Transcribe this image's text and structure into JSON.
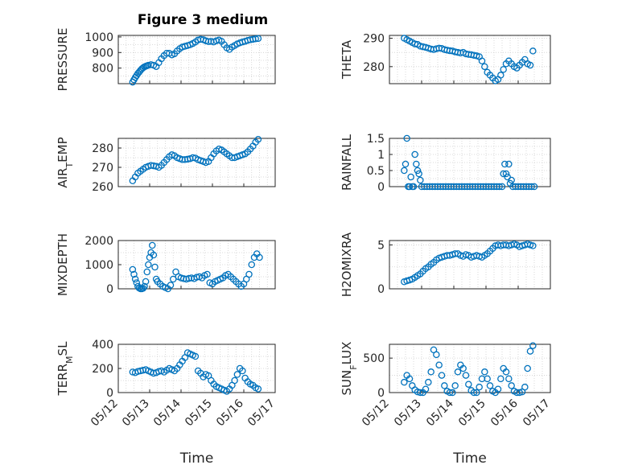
{
  "figure": {
    "title": "Figure 3 medium"
  },
  "chart_data": [
    {
      "id": "pressure",
      "type": "scatter",
      "ylabel": "PRESSURE",
      "ylabel_sub": null,
      "ylim": [
        700,
        1010
      ],
      "yticks": [
        800,
        900,
        1000
      ],
      "ytick_labels": [
        "800",
        "900",
        "1000"
      ],
      "xlim": [
        "05/12",
        "05/17"
      ],
      "xticks": [
        "05/12",
        "05/13",
        "05/14",
        "05/15",
        "05/16",
        "05/17"
      ],
      "grid": true,
      "color": "#0072BD",
      "x": [
        "05/12 11:00",
        "05/12 12:00",
        "05/12 13:00",
        "05/12 14:00",
        "05/12 15:00",
        "05/12 16:00",
        "05/12 17:00",
        "05/12 18:00",
        "05/12 19:00",
        "05/12 20:00",
        "05/12 21:00",
        "05/12 22:00",
        "05/12 23:00",
        "05/13 01:00",
        "05/13 03:00",
        "05/13 05:00",
        "05/13 07:00",
        "05/13 09:00",
        "05/13 11:00",
        "05/13 13:00",
        "05/13 15:00",
        "05/13 17:00",
        "05/13 19:00",
        "05/13 21:00",
        "05/13 23:00",
        "05/14 01:00",
        "05/14 03:00",
        "05/14 05:00",
        "05/14 07:00",
        "05/14 09:00",
        "05/14 11:00",
        "05/14 13:00",
        "05/14 15:00",
        "05/14 17:00",
        "05/14 19:00",
        "05/14 21:00",
        "05/14 23:00",
        "05/15 01:00",
        "05/15 03:00",
        "05/15 05:00",
        "05/15 07:00",
        "05/15 09:00",
        "05/15 11:00",
        "05/15 13:00",
        "05/15 15:00",
        "05/15 17:00",
        "05/15 19:00",
        "05/15 21:00",
        "05/15 23:00",
        "05/16 01:00",
        "05/16 03:00",
        "05/16 05:00",
        "05/16 07:00",
        "05/16 09:00",
        "05/16 11:00"
      ],
      "y": [
        710,
        725,
        740,
        752,
        765,
        775,
        785,
        795,
        802,
        808,
        812,
        815,
        818,
        822,
        818,
        810,
        835,
        860,
        880,
        895,
        895,
        885,
        892,
        910,
        925,
        935,
        940,
        945,
        950,
        958,
        968,
        980,
        985,
        982,
        975,
        970,
        972,
        968,
        975,
        980,
        972,
        950,
        930,
        920,
        935,
        945,
        955,
        962,
        968,
        972,
        978,
        982,
        985,
        988,
        990
      ]
    },
    {
      "id": "theta",
      "type": "scatter",
      "ylabel": "THETA",
      "ylabel_sub": null,
      "ylim": [
        274,
        291
      ],
      "yticks": [
        280,
        290
      ],
      "ytick_labels": [
        "280",
        "290"
      ],
      "xlim": [
        "05/12",
        "05/17"
      ],
      "xticks": [
        "05/12",
        "05/13",
        "05/14",
        "05/15",
        "05/16",
        "05/17"
      ],
      "grid": true,
      "color": "#0072BD",
      "x": [
        "05/12 11:00",
        "05/12 13:00",
        "05/12 15:00",
        "05/12 17:00",
        "05/12 19:00",
        "05/12 21:00",
        "05/12 23:00",
        "05/13 01:00",
        "05/13 03:00",
        "05/13 05:00",
        "05/13 07:00",
        "05/13 09:00",
        "05/13 11:00",
        "05/13 13:00",
        "05/13 15:00",
        "05/13 17:00",
        "05/13 19:00",
        "05/13 21:00",
        "05/13 23:00",
        "05/14 01:00",
        "05/14 03:00",
        "05/14 05:00",
        "05/14 07:00",
        "05/14 09:00",
        "05/14 11:00",
        "05/14 13:00",
        "05/14 15:00",
        "05/14 17:00",
        "05/14 19:00",
        "05/14 21:00",
        "05/14 23:00",
        "05/15 01:00",
        "05/15 03:00",
        "05/15 05:00",
        "05/15 07:00",
        "05/15 09:00",
        "05/15 11:00",
        "05/15 13:00",
        "05/15 15:00",
        "05/15 17:00",
        "05/15 19:00",
        "05/15 21:00",
        "05/15 23:00",
        "05/16 01:00",
        "05/16 03:00",
        "05/16 05:00",
        "05/16 07:00",
        "05/16 09:00",
        "05/16 11:00"
      ],
      "y": [
        290,
        289.5,
        289,
        288.5,
        288,
        287.8,
        287.2,
        287,
        286.8,
        286.5,
        286.2,
        286,
        286.3,
        286.5,
        286.4,
        286,
        285.8,
        285.6,
        285.5,
        285.2,
        285,
        284.8,
        285,
        284.5,
        284.3,
        284.2,
        284,
        283.8,
        283.5,
        282,
        280,
        278,
        277,
        276,
        275,
        275.5,
        277,
        279,
        281,
        282,
        281,
        280,
        279.5,
        280.5,
        281.5,
        282.5,
        281,
        280.5,
        285.5
      ]
    },
    {
      "id": "air_temp",
      "type": "scatter",
      "ylabel": "AIR",
      "ylabel_sub": "T",
      "ylabel_suffix": "EMP",
      "ylim": [
        260,
        285
      ],
      "yticks": [
        260,
        270,
        280
      ],
      "ytick_labels": [
        "260",
        "270",
        "280"
      ],
      "xlim": [
        "05/12",
        "05/17"
      ],
      "xticks": [
        "05/12",
        "05/13",
        "05/14",
        "05/15",
        "05/16",
        "05/17"
      ],
      "grid": true,
      "color": "#0072BD",
      "x": [
        "05/12 11:00",
        "05/12 13:00",
        "05/12 15:00",
        "05/12 17:00",
        "05/12 19:00",
        "05/12 21:00",
        "05/12 23:00",
        "05/13 01:00",
        "05/13 03:00",
        "05/13 05:00",
        "05/13 07:00",
        "05/13 09:00",
        "05/13 11:00",
        "05/13 13:00",
        "05/13 15:00",
        "05/13 17:00",
        "05/13 19:00",
        "05/13 21:00",
        "05/13 23:00",
        "05/14 01:00",
        "05/14 03:00",
        "05/14 05:00",
        "05/14 07:00",
        "05/14 09:00",
        "05/14 11:00",
        "05/14 13:00",
        "05/14 15:00",
        "05/14 17:00",
        "05/14 19:00",
        "05/14 21:00",
        "05/14 23:00",
        "05/15 01:00",
        "05/15 03:00",
        "05/15 05:00",
        "05/15 07:00",
        "05/15 09:00",
        "05/15 11:00",
        "05/15 13:00",
        "05/15 15:00",
        "05/15 17:00",
        "05/15 19:00",
        "05/15 21:00",
        "05/15 23:00",
        "05/16 01:00",
        "05/16 03:00",
        "05/16 05:00",
        "05/16 07:00",
        "05/16 09:00",
        "05/16 11:00"
      ],
      "y": [
        263,
        265,
        267,
        268,
        269,
        270,
        270.5,
        271,
        270.8,
        270.5,
        270,
        271,
        272.5,
        274,
        275.5,
        276.5,
        276,
        275,
        274.5,
        274,
        274,
        274.2,
        274.5,
        275,
        274.8,
        274,
        273.5,
        273,
        272.5,
        273,
        275,
        277,
        278.5,
        279.5,
        279,
        278,
        277,
        276,
        275,
        275,
        275.5,
        276,
        276.5,
        277,
        278,
        279.5,
        281,
        283,
        284.5
      ]
    },
    {
      "id": "rainfall",
      "type": "scatter",
      "ylabel": "RAINFALL",
      "ylabel_sub": null,
      "ylim": [
        0,
        1.5
      ],
      "yticks": [
        0,
        0.5,
        1,
        1.5
      ],
      "ytick_labels": [
        "0",
        "0.5",
        "1",
        "1.5"
      ],
      "xlim": [
        "05/12",
        "05/17"
      ],
      "xticks": [
        "05/12",
        "05/13",
        "05/14",
        "05/15",
        "05/16",
        "05/17"
      ],
      "grid": true,
      "color": "#0072BD",
      "x": [
        "05/12 11:00",
        "05/12 12:00",
        "05/12 13:00",
        "05/12 14:00",
        "05/12 15:00",
        "05/12 16:00",
        "05/12 17:00",
        "05/12 18:00",
        "05/12 19:00",
        "05/12 20:00",
        "05/12 21:00",
        "05/12 22:00",
        "05/12 23:00",
        "05/13 00:00",
        "05/13 02:00",
        "05/13 04:00",
        "05/13 06:00",
        "05/13 08:00",
        "05/13 10:00",
        "05/13 12:00",
        "05/13 14:00",
        "05/13 16:00",
        "05/13 18:00",
        "05/13 20:00",
        "05/13 22:00",
        "05/14 00:00",
        "05/14 02:00",
        "05/14 04:00",
        "05/14 06:00",
        "05/14 08:00",
        "05/14 10:00",
        "05/14 12:00",
        "05/14 14:00",
        "05/14 16:00",
        "05/14 18:00",
        "05/14 20:00",
        "05/14 22:00",
        "05/15 00:00",
        "05/15 02:00",
        "05/15 04:00",
        "05/15 06:00",
        "05/15 08:00",
        "05/15 10:00",
        "05/15 12:00",
        "05/15 13:00",
        "05/15 14:00",
        "05/15 15:00",
        "05/15 16:00",
        "05/15 17:00",
        "05/15 18:00",
        "05/15 19:00",
        "05/15 20:00",
        "05/15 22:00",
        "05/16 00:00",
        "05/16 02:00",
        "05/16 04:00",
        "05/16 06:00",
        "05/16 08:00",
        "05/16 10:00",
        "05/16 12:00"
      ],
      "y": [
        0.5,
        0.7,
        1.5,
        0,
        0,
        0.3,
        0,
        0,
        1,
        0.7,
        0.5,
        0.4,
        0.2,
        0,
        0,
        0,
        0,
        0,
        0,
        0,
        0,
        0,
        0,
        0,
        0,
        0,
        0,
        0,
        0,
        0,
        0,
        0,
        0,
        0,
        0,
        0,
        0,
        0,
        0,
        0,
        0,
        0,
        0,
        0,
        0.4,
        0.7,
        0.4,
        0.3,
        0.7,
        0.1,
        0.2,
        0,
        0,
        0,
        0,
        0,
        0,
        0,
        0,
        0
      ]
    },
    {
      "id": "mixdepth",
      "type": "scatter",
      "ylabel": "MIXDEPTH",
      "ylabel_sub": null,
      "ylim": [
        0,
        2000
      ],
      "yticks": [
        0,
        1000,
        2000
      ],
      "ytick_labels": [
        "0",
        "1000",
        "2000"
      ],
      "xlim": [
        "05/12",
        "05/17"
      ],
      "xticks": [
        "05/12",
        "05/13",
        "05/14",
        "05/15",
        "05/16",
        "05/17"
      ],
      "grid": true,
      "color": "#0072BD",
      "x": [
        "05/12 11:00",
        "05/12 12:00",
        "05/12 13:00",
        "05/12 14:00",
        "05/12 15:00",
        "05/12 16:00",
        "05/12 17:00",
        "05/12 18:00",
        "05/12 19:00",
        "05/12 20:00",
        "05/12 21:00",
        "05/12 22:00",
        "05/12 23:00",
        "05/13 00:00",
        "05/13 01:00",
        "05/13 02:00",
        "05/13 03:00",
        "05/13 04:00",
        "05/13 05:00",
        "05/13 06:00",
        "05/13 08:00",
        "05/13 10:00",
        "05/13 12:00",
        "05/13 14:00",
        "05/13 16:00",
        "05/13 18:00",
        "05/13 20:00",
        "05/13 22:00",
        "05/14 00:00",
        "05/14 02:00",
        "05/14 04:00",
        "05/14 06:00",
        "05/14 08:00",
        "05/14 10:00",
        "05/14 12:00",
        "05/14 14:00",
        "05/14 16:00",
        "05/14 18:00",
        "05/14 20:00",
        "05/14 22:00",
        "05/15 00:00",
        "05/15 02:00",
        "05/15 04:00",
        "05/15 06:00",
        "05/15 08:00",
        "05/15 10:00",
        "05/15 12:00",
        "05/15 14:00",
        "05/15 16:00",
        "05/15 18:00",
        "05/15 20:00",
        "05/15 22:00",
        "05/16 00:00",
        "05/16 02:00",
        "05/16 04:00",
        "05/16 06:00",
        "05/16 08:00",
        "05/16 10:00",
        "05/16 12:00"
      ],
      "y": [
        800,
        600,
        400,
        250,
        100,
        30,
        0,
        0,
        20,
        100,
        300,
        700,
        1000,
        1300,
        1500,
        1800,
        1400,
        900,
        400,
        300,
        200,
        100,
        50,
        0,
        150,
        400,
        700,
        500,
        450,
        420,
        400,
        430,
        450,
        420,
        480,
        500,
        450,
        550,
        600,
        250,
        200,
        300,
        350,
        400,
        450,
        550,
        600,
        500,
        400,
        300,
        200,
        100,
        200,
        400,
        600,
        1000,
        1300,
        1450,
        1300
      ]
    },
    {
      "id": "h2omixra",
      "type": "scatter",
      "ylabel": "H2OMIXRA",
      "ylabel_sub": null,
      "ylim": [
        0,
        5.5
      ],
      "yticks": [
        0,
        5
      ],
      "ytick_labels": [
        "0",
        "5"
      ],
      "xlim": [
        "05/12",
        "05/17"
      ],
      "xticks": [
        "05/12",
        "05/13",
        "05/14",
        "05/15",
        "05/16",
        "05/17"
      ],
      "grid": true,
      "color": "#0072BD",
      "x": [
        "05/12 11:00",
        "05/12 13:00",
        "05/12 15:00",
        "05/12 17:00",
        "05/12 19:00",
        "05/12 21:00",
        "05/12 23:00",
        "05/13 01:00",
        "05/13 03:00",
        "05/13 05:00",
        "05/13 07:00",
        "05/13 09:00",
        "05/13 11:00",
        "05/13 13:00",
        "05/13 15:00",
        "05/13 17:00",
        "05/13 19:00",
        "05/13 21:00",
        "05/13 23:00",
        "05/14 01:00",
        "05/14 03:00",
        "05/14 05:00",
        "05/14 07:00",
        "05/14 09:00",
        "05/14 11:00",
        "05/14 13:00",
        "05/14 15:00",
        "05/14 17:00",
        "05/14 19:00",
        "05/14 21:00",
        "05/14 23:00",
        "05/15 01:00",
        "05/15 03:00",
        "05/15 05:00",
        "05/15 07:00",
        "05/15 09:00",
        "05/15 11:00",
        "05/15 13:00",
        "05/15 15:00",
        "05/15 17:00",
        "05/15 19:00",
        "05/15 21:00",
        "05/15 23:00",
        "05/16 01:00",
        "05/16 03:00",
        "05/16 05:00",
        "05/16 07:00",
        "05/16 09:00",
        "05/16 11:00"
      ],
      "y": [
        0.8,
        0.9,
        1.0,
        1.1,
        1.3,
        1.5,
        1.7,
        2.0,
        2.3,
        2.5,
        2.8,
        3.0,
        3.3,
        3.5,
        3.6,
        3.7,
        3.8,
        3.8,
        3.9,
        4.0,
        4.0,
        3.8,
        3.7,
        3.9,
        3.8,
        3.6,
        3.7,
        3.8,
        3.7,
        3.6,
        3.8,
        4.0,
        4.3,
        4.6,
        4.9,
        5.0,
        4.9,
        5.0,
        5.0,
        4.9,
        5.0,
        5.1,
        5.0,
        4.8,
        4.9,
        5.0,
        5.1,
        5.0,
        4.9
      ]
    },
    {
      "id": "terr_msl",
      "type": "scatter",
      "ylabel": "TERR",
      "ylabel_sub": "M",
      "ylabel_suffix": "SL",
      "ylim": [
        0,
        400
      ],
      "yticks": [
        0,
        200,
        400
      ],
      "ytick_labels": [
        "0",
        "200",
        "400"
      ],
      "xlim": [
        "05/12",
        "05/17"
      ],
      "xticks": [
        "05/12",
        "05/13",
        "05/14",
        "05/15",
        "05/16",
        "05/17"
      ],
      "xticklabels_visible": true,
      "xlabel": "Time",
      "grid": true,
      "color": "#0072BD",
      "x": [
        "05/12 11:00",
        "05/12 13:00",
        "05/12 15:00",
        "05/12 17:00",
        "05/12 19:00",
        "05/12 21:00",
        "05/12 23:00",
        "05/13 01:00",
        "05/13 03:00",
        "05/13 05:00",
        "05/13 07:00",
        "05/13 09:00",
        "05/13 11:00",
        "05/13 13:00",
        "05/13 15:00",
        "05/13 17:00",
        "05/13 19:00",
        "05/13 21:00",
        "05/13 23:00",
        "05/14 01:00",
        "05/14 03:00",
        "05/14 05:00",
        "05/14 07:00",
        "05/14 09:00",
        "05/14 11:00",
        "05/14 13:00",
        "05/14 15:00",
        "05/14 17:00",
        "05/14 19:00",
        "05/14 21:00",
        "05/14 23:00",
        "05/15 01:00",
        "05/15 03:00",
        "05/15 05:00",
        "05/15 07:00",
        "05/15 09:00",
        "05/15 11:00",
        "05/15 13:00",
        "05/15 15:00",
        "05/15 17:00",
        "05/15 19:00",
        "05/15 21:00",
        "05/15 23:00",
        "05/16 01:00",
        "05/16 03:00",
        "05/16 05:00",
        "05/16 07:00",
        "05/16 09:00",
        "05/16 11:00"
      ],
      "y": [
        170,
        165,
        175,
        180,
        185,
        190,
        180,
        170,
        160,
        165,
        175,
        180,
        170,
        185,
        200,
        190,
        180,
        200,
        230,
        260,
        290,
        330,
        320,
        310,
        300,
        180,
        160,
        130,
        150,
        140,
        100,
        70,
        50,
        40,
        30,
        20,
        10,
        30,
        60,
        100,
        150,
        200,
        180,
        120,
        90,
        70,
        60,
        40,
        30
      ]
    },
    {
      "id": "sun_flux",
      "type": "scatter",
      "ylabel": "SUN",
      "ylabel_sub": "F",
      "ylabel_suffix": "LUX",
      "ylim": [
        0,
        700
      ],
      "yticks": [
        0,
        500
      ],
      "ytick_labels": [
        "0",
        "500"
      ],
      "xlim": [
        "05/12",
        "05/17"
      ],
      "xticks": [
        "05/12",
        "05/13",
        "05/14",
        "05/15",
        "05/16",
        "05/17"
      ],
      "xticklabels_visible": true,
      "xlabel": "Time",
      "grid": true,
      "color": "#0072BD",
      "x": [
        "05/12 11:00",
        "05/12 13:00",
        "05/12 15:00",
        "05/12 17:00",
        "05/12 19:00",
        "05/12 21:00",
        "05/12 23:00",
        "05/13 01:00",
        "05/13 03:00",
        "05/13 05:00",
        "05/13 07:00",
        "05/13 09:00",
        "05/13 11:00",
        "05/13 13:00",
        "05/13 15:00",
        "05/13 17:00",
        "05/13 19:00",
        "05/13 21:00",
        "05/13 23:00",
        "05/14 01:00",
        "05/14 03:00",
        "05/14 05:00",
        "05/14 07:00",
        "05/14 09:00",
        "05/14 11:00",
        "05/14 13:00",
        "05/14 15:00",
        "05/14 17:00",
        "05/14 19:00",
        "05/14 21:00",
        "05/14 23:00",
        "05/15 01:00",
        "05/15 03:00",
        "05/15 05:00",
        "05/15 07:00",
        "05/15 09:00",
        "05/15 11:00",
        "05/15 13:00",
        "05/15 15:00",
        "05/15 17:00",
        "05/15 19:00",
        "05/15 21:00",
        "05/15 23:00",
        "05/16 01:00",
        "05/16 03:00",
        "05/16 05:00",
        "05/16 07:00",
        "05/16 09:00",
        "05/16 11:00"
      ],
      "y": [
        150,
        250,
        200,
        100,
        40,
        10,
        0,
        0,
        50,
        150,
        300,
        620,
        550,
        400,
        250,
        100,
        20,
        0,
        0,
        100,
        300,
        400,
        350,
        250,
        120,
        30,
        0,
        0,
        80,
        200,
        300,
        200,
        100,
        20,
        0,
        50,
        200,
        350,
        300,
        200,
        100,
        20,
        0,
        0,
        10,
        80,
        350,
        600,
        680
      ]
    }
  ]
}
